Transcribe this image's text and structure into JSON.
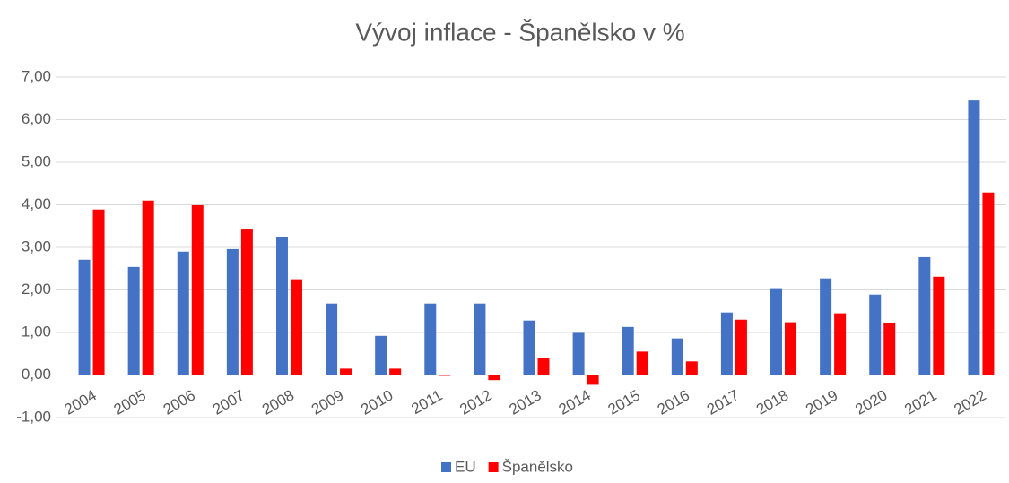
{
  "chart_data": {
    "type": "bar",
    "title": "Vývoj inflace  - Španělsko v %",
    "categories": [
      "2004",
      "2005",
      "2006",
      "2007",
      "2008",
      "2009",
      "2010",
      "2011",
      "2012",
      "2013",
      "2014",
      "2015",
      "2016",
      "2017",
      "2018",
      "2019",
      "2020",
      "2021",
      "2022"
    ],
    "series": [
      {
        "name": "EU",
        "color": "#4472c4",
        "values": [
          2.71,
          2.54,
          2.9,
          2.96,
          3.24,
          1.68,
          0.92,
          1.68,
          1.68,
          1.28,
          0.99,
          1.13,
          0.86,
          1.47,
          2.04,
          2.27,
          1.89,
          2.77,
          6.45
        ]
      },
      {
        "name": "Španělsko",
        "color": "#ff0000",
        "values": [
          3.89,
          4.1,
          3.99,
          3.42,
          2.25,
          0.15,
          0.15,
          -0.02,
          -0.12,
          0.4,
          -0.23,
          0.55,
          0.32,
          1.3,
          1.24,
          1.45,
          1.22,
          2.31,
          4.29
        ]
      }
    ],
    "ylim": [
      -1,
      7
    ],
    "yticks": [
      {
        "value": -1,
        "label": "-1,00"
      },
      {
        "value": 0,
        "label": "0,00"
      },
      {
        "value": 1,
        "label": "1,00"
      },
      {
        "value": 2,
        "label": "2,00"
      },
      {
        "value": 3,
        "label": "3,00"
      },
      {
        "value": 4,
        "label": "4,00"
      },
      {
        "value": 5,
        "label": "5,00"
      },
      {
        "value": 6,
        "label": "6,00"
      },
      {
        "value": 7,
        "label": "7,00"
      }
    ],
    "grid": true,
    "legend": "bottom"
  }
}
